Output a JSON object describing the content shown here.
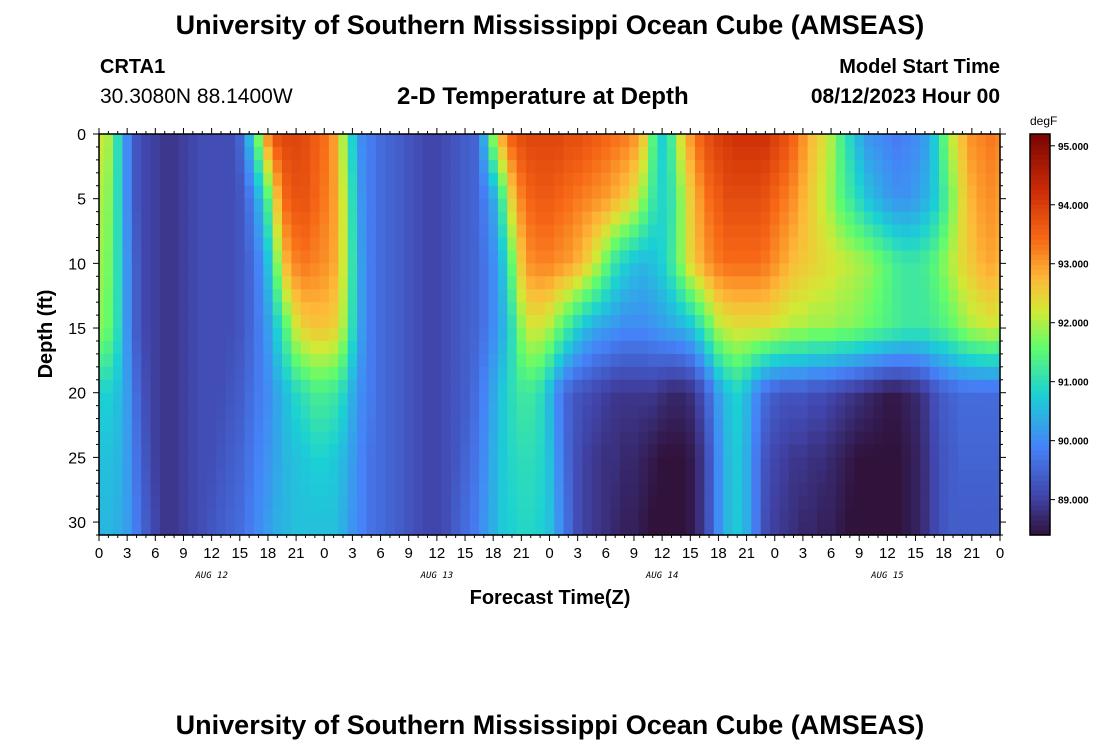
{
  "header": {
    "title": "University of Southern Mississippi Ocean Cube (AMSEAS)",
    "station": "CRTA1",
    "coords": "30.3080N  88.1400W",
    "subtitle": "2-D Temperature at Depth",
    "start_label": "Model Start Time",
    "start_value": "08/12/2023 Hour 00"
  },
  "footer": {
    "title": "University of Southern Mississippi Ocean Cube (AMSEAS)"
  },
  "chart_data": {
    "type": "heatmap",
    "title": "2-D Temperature at Depth",
    "xlabel": "Forecast Time(Z)",
    "ylabel": "Depth (ft)",
    "colorbar_unit": "degF",
    "x_range_hours": [
      0,
      96
    ],
    "x_tick_labels": [
      "0",
      "3",
      "6",
      "9",
      "12",
      "15",
      "18",
      "21",
      "0",
      "3",
      "6",
      "9",
      "12",
      "15",
      "18",
      "21",
      "0",
      "3",
      "6",
      "9",
      "12",
      "15",
      "18",
      "21",
      "0",
      "3",
      "6",
      "9",
      "12",
      "15",
      "18",
      "21",
      "0"
    ],
    "date_labels": [
      {
        "label": "AUG 12",
        "hour": 12
      },
      {
        "label": "AUG 13",
        "hour": 36
      },
      {
        "label": "AUG 14",
        "hour": 60
      },
      {
        "label": "AUG 15",
        "hour": 84
      }
    ],
    "y_range_ft": [
      0,
      31
    ],
    "y_ticks": [
      0,
      5,
      10,
      15,
      20,
      25,
      30
    ],
    "y_inverted": true,
    "colorbar_ticks": [
      "95.000",
      "94.000",
      "93.000",
      "92.000",
      "91.000",
      "90.000",
      "89.000"
    ],
    "colorbar_range": [
      88.4,
      95.2
    ],
    "depths_ft": [
      0,
      5,
      10,
      15,
      20,
      25,
      30
    ],
    "hours": [
      0,
      1,
      2,
      3,
      4,
      5,
      6,
      7,
      8,
      9,
      10,
      11,
      12,
      13,
      14,
      15,
      16,
      17,
      18,
      19,
      20,
      21,
      22,
      23,
      24,
      25,
      26,
      27,
      28,
      29,
      30,
      31,
      32,
      33,
      34,
      35,
      36,
      37,
      38,
      39,
      40,
      41,
      42,
      43,
      44,
      45,
      46,
      47,
      48,
      49,
      50,
      51,
      52,
      53,
      54,
      55,
      56,
      57,
      58,
      59,
      60,
      61,
      62,
      63,
      64,
      65,
      66,
      67,
      68,
      69,
      70,
      71,
      72,
      73,
      74,
      75,
      76,
      77,
      78,
      79,
      80,
      81,
      82,
      83,
      84,
      85,
      86,
      87,
      88,
      89,
      90,
      91,
      92,
      93,
      94,
      95,
      96
    ],
    "temperature_degF": [
      [
        92.2,
        92.0,
        91.0,
        90.0,
        89.3,
        89.1,
        89.0,
        88.9,
        88.9,
        89.0,
        89.1,
        89.2,
        89.2,
        89.2,
        89.2,
        89.5,
        90.5,
        91.8,
        93.2,
        93.8,
        93.9,
        93.9,
        93.8,
        93.6,
        93.4,
        93.0,
        92.0,
        90.8,
        90.0,
        89.8,
        89.6,
        89.5,
        89.4,
        89.3,
        89.2,
        89.1,
        89.1,
        89.2,
        89.3,
        89.4,
        89.5,
        90.4,
        91.9,
        93.0,
        93.6,
        93.8,
        93.9,
        93.9,
        93.9,
        93.9,
        93.8,
        93.8,
        93.7,
        93.6,
        93.5,
        93.4,
        93.3,
        93.1,
        92.6,
        91.5,
        90.8,
        91.3,
        92.3,
        93.0,
        93.5,
        93.8,
        94.0,
        94.1,
        94.2,
        94.2,
        94.2,
        94.2,
        94.0,
        93.8,
        93.5,
        93.1,
        92.7,
        92.4,
        92.0,
        91.4,
        90.9,
        90.4,
        90.1,
        90.0,
        89.9,
        89.8,
        89.9,
        90.0,
        90.2,
        90.7,
        91.5,
        92.2,
        92.7,
        93.1,
        93.2,
        93.3,
        93.2
      ],
      [
        92.0,
        91.8,
        91.0,
        90.0,
        89.3,
        89.1,
        89.0,
        88.9,
        88.9,
        89.0,
        89.1,
        89.2,
        89.2,
        89.2,
        89.2,
        89.3,
        89.7,
        90.4,
        91.4,
        92.7,
        93.5,
        93.7,
        93.7,
        93.5,
        93.3,
        93.0,
        92.2,
        91.0,
        90.1,
        89.8,
        89.6,
        89.5,
        89.4,
        89.3,
        89.2,
        89.1,
        89.1,
        89.2,
        89.3,
        89.4,
        89.5,
        89.8,
        90.3,
        91.3,
        92.5,
        93.2,
        93.5,
        93.6,
        93.6,
        93.5,
        93.4,
        93.3,
        93.2,
        93.1,
        93.0,
        92.8,
        92.6,
        92.3,
        91.8,
        91.2,
        90.9,
        91.1,
        91.8,
        92.5,
        93.0,
        93.4,
        93.6,
        93.8,
        93.8,
        93.8,
        93.8,
        93.7,
        93.5,
        93.3,
        93.1,
        92.8,
        92.5,
        92.2,
        91.9,
        91.5,
        91.2,
        90.9,
        90.6,
        90.4,
        90.2,
        90.1,
        90.1,
        90.2,
        90.4,
        90.7,
        91.2,
        91.8,
        92.4,
        92.8,
        93.0,
        93.1,
        93.0
      ],
      [
        91.9,
        91.7,
        91.0,
        90.1,
        89.4,
        89.1,
        89.0,
        88.9,
        88.9,
        89.0,
        89.1,
        89.2,
        89.2,
        89.2,
        89.2,
        89.3,
        89.5,
        89.9,
        90.6,
        91.8,
        92.8,
        93.2,
        93.3,
        93.2,
        93.1,
        92.9,
        92.2,
        91.1,
        90.2,
        89.8,
        89.6,
        89.5,
        89.4,
        89.3,
        89.2,
        89.1,
        89.1,
        89.2,
        89.3,
        89.4,
        89.5,
        89.7,
        90.0,
        90.6,
        91.6,
        92.6,
        93.1,
        93.2,
        93.2,
        93.1,
        93.0,
        92.8,
        92.5,
        92.1,
        91.6,
        91.1,
        90.8,
        90.6,
        90.5,
        90.6,
        90.8,
        91.2,
        91.8,
        92.4,
        92.8,
        93.1,
        93.3,
        93.4,
        93.4,
        93.4,
        93.4,
        93.3,
        93.1,
        92.9,
        92.7,
        92.6,
        92.5,
        92.4,
        92.3,
        92.2,
        92.1,
        92.0,
        91.9,
        91.7,
        91.5,
        91.3,
        91.2,
        91.2,
        91.3,
        91.5,
        91.8,
        92.1,
        92.4,
        92.6,
        92.8,
        92.9,
        92.8
      ],
      [
        91.8,
        91.6,
        91.0,
        90.1,
        89.4,
        89.1,
        89.0,
        88.9,
        88.9,
        89.0,
        89.1,
        89.2,
        89.2,
        89.2,
        89.2,
        89.3,
        89.5,
        89.8,
        90.2,
        90.8,
        91.5,
        92.2,
        92.5,
        92.6,
        92.6,
        92.5,
        92.0,
        91.0,
        90.2,
        89.8,
        89.6,
        89.5,
        89.4,
        89.3,
        89.2,
        89.1,
        89.1,
        89.2,
        89.3,
        89.4,
        89.5,
        89.7,
        90.0,
        90.4,
        91.0,
        91.8,
        92.2,
        92.2,
        92.0,
        91.6,
        91.2,
        90.8,
        90.5,
        90.3,
        90.2,
        90.1,
        90.0,
        90.0,
        90.0,
        90.1,
        90.2,
        90.3,
        90.4,
        90.6,
        91.0,
        91.5,
        92.0,
        92.2,
        92.3,
        92.3,
        92.3,
        92.3,
        92.2,
        92.1,
        92.0,
        92.0,
        91.9,
        91.9,
        91.9,
        91.8,
        91.8,
        91.7,
        91.6,
        91.5,
        91.4,
        91.3,
        91.2,
        91.2,
        91.2,
        91.3,
        91.4,
        91.6,
        91.8,
        92.0,
        92.1,
        92.2,
        92.1
      ],
      [
        90.8,
        90.8,
        90.6,
        90.2,
        89.6,
        89.2,
        89.0,
        88.9,
        88.9,
        89.0,
        89.1,
        89.2,
        89.2,
        89.2,
        89.3,
        89.4,
        89.6,
        89.8,
        90.0,
        90.3,
        90.6,
        90.9,
        91.1,
        91.3,
        91.3,
        91.2,
        90.9,
        90.4,
        90.0,
        89.8,
        89.6,
        89.5,
        89.4,
        89.3,
        89.2,
        89.1,
        89.1,
        89.2,
        89.3,
        89.4,
        89.6,
        89.9,
        90.3,
        90.7,
        91.0,
        91.2,
        91.2,
        91.0,
        90.5,
        89.9,
        89.5,
        89.3,
        89.2,
        89.1,
        89.0,
        88.9,
        88.9,
        88.9,
        88.9,
        88.9,
        88.8,
        88.7,
        88.7,
        88.8,
        89.1,
        89.6,
        90.2,
        90.6,
        90.8,
        90.5,
        90.0,
        89.6,
        89.4,
        89.3,
        89.3,
        89.3,
        89.2,
        89.2,
        89.1,
        89.0,
        88.9,
        88.8,
        88.7,
        88.6,
        88.5,
        88.5,
        88.6,
        88.7,
        88.9,
        89.2,
        89.4,
        89.5,
        89.6,
        89.6,
        89.6,
        89.6,
        89.6
      ],
      [
        90.6,
        90.6,
        90.5,
        90.2,
        89.7,
        89.3,
        89.0,
        88.9,
        88.9,
        89.0,
        89.1,
        89.2,
        89.2,
        89.3,
        89.4,
        89.5,
        89.7,
        89.9,
        90.1,
        90.3,
        90.5,
        90.6,
        90.7,
        90.8,
        90.8,
        90.7,
        90.5,
        90.2,
        89.9,
        89.7,
        89.6,
        89.5,
        89.4,
        89.3,
        89.2,
        89.1,
        89.1,
        89.2,
        89.3,
        89.5,
        89.7,
        90.0,
        90.4,
        90.7,
        90.9,
        91.0,
        91.0,
        90.9,
        90.6,
        90.0,
        89.5,
        89.2,
        89.0,
        88.9,
        88.8,
        88.8,
        88.7,
        88.7,
        88.6,
        88.5,
        88.4,
        88.4,
        88.4,
        88.5,
        88.8,
        89.3,
        90.0,
        90.5,
        90.7,
        90.4,
        89.8,
        89.3,
        89.1,
        89.0,
        88.9,
        88.9,
        88.8,
        88.8,
        88.7,
        88.6,
        88.5,
        88.4,
        88.4,
        88.4,
        88.4,
        88.4,
        88.5,
        88.6,
        88.8,
        89.1,
        89.3,
        89.4,
        89.5,
        89.5,
        89.5,
        89.5,
        89.5
      ],
      [
        90.5,
        90.5,
        90.4,
        90.2,
        89.8,
        89.4,
        89.1,
        88.9,
        88.9,
        89.0,
        89.1,
        89.2,
        89.3,
        89.4,
        89.5,
        89.6,
        89.8,
        90.0,
        90.2,
        90.4,
        90.5,
        90.6,
        90.6,
        90.6,
        90.6,
        90.6,
        90.4,
        90.1,
        89.9,
        89.7,
        89.6,
        89.5,
        89.4,
        89.3,
        89.2,
        89.1,
        89.1,
        89.2,
        89.4,
        89.6,
        89.8,
        90.1,
        90.4,
        90.7,
        90.8,
        90.9,
        90.9,
        90.8,
        90.6,
        90.1,
        89.6,
        89.2,
        89.0,
        88.9,
        88.8,
        88.7,
        88.6,
        88.6,
        88.5,
        88.4,
        88.4,
        88.4,
        88.4,
        88.5,
        88.8,
        89.3,
        90.0,
        90.5,
        90.7,
        90.4,
        89.8,
        89.2,
        89.0,
        88.9,
        88.8,
        88.7,
        88.7,
        88.6,
        88.6,
        88.5,
        88.4,
        88.4,
        88.4,
        88.4,
        88.4,
        88.4,
        88.5,
        88.6,
        88.8,
        89.1,
        89.3,
        89.4,
        89.4,
        89.4,
        89.4,
        89.4,
        89.4
      ]
    ]
  }
}
